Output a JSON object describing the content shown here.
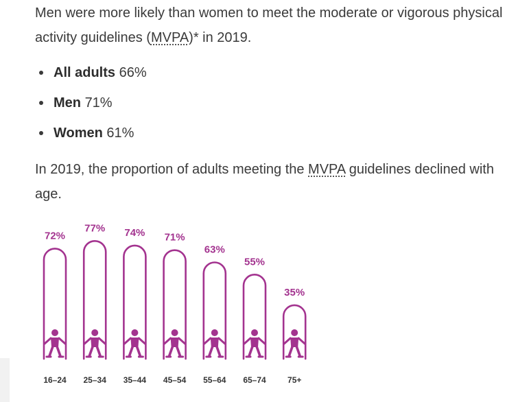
{
  "intro": {
    "before_abbr": "Men were more likely than women to meet the moderate or vigorous physical activity guidelines (",
    "abbr": "MVPA",
    "after_abbr": ")* in 2019."
  },
  "bullets": [
    {
      "label": "All adults",
      "value": "66%"
    },
    {
      "label": "Men",
      "value": "71%"
    },
    {
      "label": "Women",
      "value": "61%"
    }
  ],
  "age_paragraph": {
    "before_abbr": "In 2019, the proportion of adults meeting the ",
    "abbr": "MVPA",
    "after_abbr": " guidelines declined with age."
  },
  "colors": {
    "accent": "#a3338f",
    "tick_text": "#333333"
  },
  "chart_data": {
    "type": "bar",
    "title": "",
    "xlabel": "",
    "ylabel": "",
    "categories": [
      "16–24",
      "25–34",
      "35–44",
      "45–54",
      "55–64",
      "65–74",
      "75+"
    ],
    "values": [
      72,
      77,
      74,
      71,
      63,
      55,
      35
    ],
    "data_labels": [
      "72%",
      "77%",
      "74%",
      "71%",
      "63%",
      "55%",
      "35%"
    ],
    "ylim": [
      0,
      100
    ],
    "grid": false,
    "mark_icon": "person-icon"
  }
}
